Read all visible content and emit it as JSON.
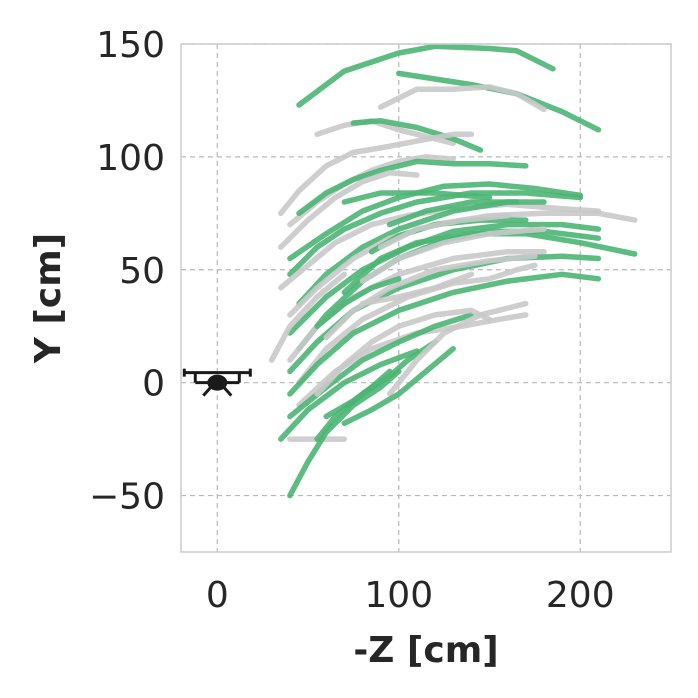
{
  "chart_data": {
    "type": "line",
    "xlabel": "-Z [cm]",
    "ylabel": "Y [cm]",
    "xlim": [
      -20,
      250
    ],
    "ylim": [
      -75,
      150
    ],
    "xticks": [
      0,
      100,
      200
    ],
    "yticks": [
      150,
      100,
      50,
      0,
      -50
    ],
    "xtick_labels": [
      "0",
      "100",
      "200"
    ],
    "ytick_labels": [
      "150",
      "100",
      "50",
      "0",
      "−50"
    ],
    "grid": true,
    "colors": {
      "green": "#4bb573",
      "gray": "#c9c9c9",
      "drone": "#1a1a1a"
    },
    "drone_marker": {
      "icon": "drone-icon",
      "x": 0,
      "y": 0
    },
    "series": [
      {
        "color": "green",
        "points": [
          [
            45,
            123
          ],
          [
            70,
            138
          ],
          [
            100,
            146
          ],
          [
            120,
            149
          ],
          [
            150,
            148
          ],
          [
            165,
            147
          ],
          [
            185,
            139
          ]
        ]
      },
      {
        "color": "green",
        "points": [
          [
            100,
            137
          ],
          [
            140,
            132
          ],
          [
            165,
            128
          ],
          [
            190,
            120
          ],
          [
            210,
            112
          ]
        ]
      },
      {
        "color": "gray",
        "points": [
          [
            90,
            122
          ],
          [
            110,
            130
          ],
          [
            130,
            130
          ],
          [
            150,
            131
          ],
          [
            165,
            128
          ],
          [
            180,
            121
          ]
        ]
      },
      {
        "color": "gray",
        "points": [
          [
            55,
            110
          ],
          [
            70,
            114
          ],
          [
            85,
            116
          ],
          [
            100,
            112
          ],
          [
            120,
            108
          ],
          [
            130,
            106
          ]
        ]
      },
      {
        "color": "green",
        "points": [
          [
            75,
            115
          ],
          [
            90,
            116
          ],
          [
            110,
            113
          ],
          [
            130,
            108
          ],
          [
            145,
            103
          ]
        ]
      },
      {
        "color": "gray",
        "points": [
          [
            35,
            75
          ],
          [
            45,
            85
          ],
          [
            60,
            96
          ],
          [
            75,
            102
          ],
          [
            90,
            104
          ],
          [
            110,
            107
          ],
          [
            130,
            110
          ],
          [
            140,
            110
          ]
        ]
      },
      {
        "color": "gray",
        "points": [
          [
            40,
            70
          ],
          [
            55,
            80
          ],
          [
            70,
            88
          ],
          [
            85,
            94
          ],
          [
            100,
            98
          ],
          [
            115,
            100
          ],
          [
            130,
            99
          ]
        ]
      },
      {
        "color": "green",
        "points": [
          [
            45,
            75
          ],
          [
            60,
            84
          ],
          [
            75,
            90
          ],
          [
            90,
            94
          ],
          [
            110,
            98
          ],
          [
            130,
            97
          ],
          [
            150,
            97
          ],
          [
            170,
            96
          ]
        ]
      },
      {
        "color": "gray",
        "points": [
          [
            35,
            60
          ],
          [
            50,
            72
          ],
          [
            65,
            82
          ],
          [
            80,
            89
          ],
          [
            95,
            93
          ],
          [
            110,
            92
          ]
        ]
      },
      {
        "color": "green",
        "points": [
          [
            40,
            55
          ],
          [
            60,
            66
          ],
          [
            80,
            76
          ],
          [
            100,
            82
          ],
          [
            125,
            87
          ],
          [
            150,
            88
          ],
          [
            175,
            86
          ],
          [
            200,
            83
          ]
        ]
      },
      {
        "color": "green",
        "points": [
          [
            40,
            48
          ],
          [
            55,
            60
          ],
          [
            70,
            68
          ],
          [
            90,
            75
          ],
          [
            110,
            80
          ],
          [
            140,
            84
          ],
          [
            170,
            84
          ],
          [
            200,
            82
          ]
        ]
      },
      {
        "color": "gray",
        "points": [
          [
            35,
            42
          ],
          [
            50,
            52
          ],
          [
            65,
            62
          ],
          [
            85,
            70
          ],
          [
            105,
            74
          ],
          [
            130,
            77
          ],
          [
            160,
            79
          ],
          [
            190,
            77
          ],
          [
            210,
            76
          ]
        ]
      },
      {
        "color": "green",
        "points": [
          [
            45,
            35
          ],
          [
            60,
            48
          ],
          [
            80,
            60
          ],
          [
            100,
            68
          ],
          [
            130,
            76
          ],
          [
            160,
            80
          ],
          [
            180,
            80
          ]
        ]
      },
      {
        "color": "gray",
        "points": [
          [
            40,
            30
          ],
          [
            55,
            42
          ],
          [
            75,
            55
          ],
          [
            95,
            64
          ],
          [
            120,
            70
          ],
          [
            150,
            74
          ],
          [
            180,
            75
          ],
          [
            210,
            75
          ],
          [
            230,
            72
          ]
        ]
      },
      {
        "color": "green",
        "points": [
          [
            40,
            22
          ],
          [
            60,
            38
          ],
          [
            80,
            50
          ],
          [
            105,
            60
          ],
          [
            130,
            67
          ],
          [
            160,
            70
          ],
          [
            190,
            70
          ],
          [
            210,
            68
          ]
        ]
      },
      {
        "color": "green",
        "points": [
          [
            45,
            15
          ],
          [
            60,
            30
          ],
          [
            80,
            45
          ],
          [
            100,
            55
          ],
          [
            125,
            63
          ],
          [
            150,
            67
          ],
          [
            180,
            67
          ],
          [
            210,
            64
          ]
        ]
      },
      {
        "color": "gray",
        "points": [
          [
            40,
            10
          ],
          [
            55,
            25
          ],
          [
            75,
            38
          ],
          [
            100,
            48
          ],
          [
            130,
            55
          ],
          [
            160,
            58
          ],
          [
            180,
            58
          ]
        ]
      },
      {
        "color": "green",
        "points": [
          [
            40,
            5
          ],
          [
            55,
            18
          ],
          [
            75,
            32
          ],
          [
            100,
            42
          ],
          [
            130,
            50
          ],
          [
            160,
            55
          ],
          [
            190,
            56
          ],
          [
            210,
            55
          ]
        ]
      },
      {
        "color": "gray",
        "points": [
          [
            45,
            0
          ],
          [
            60,
            15
          ],
          [
            80,
            28
          ],
          [
            105,
            38
          ],
          [
            130,
            44
          ],
          [
            150,
            46
          ],
          [
            165,
            50
          ],
          [
            175,
            52
          ]
        ]
      },
      {
        "color": "green",
        "points": [
          [
            40,
            -5
          ],
          [
            55,
            8
          ],
          [
            75,
            22
          ],
          [
            100,
            32
          ],
          [
            130,
            40
          ],
          [
            160,
            45
          ],
          [
            190,
            48
          ],
          [
            210,
            46
          ]
        ]
      },
      {
        "color": "gray",
        "points": [
          [
            45,
            -10
          ],
          [
            65,
            5
          ],
          [
            85,
            15
          ],
          [
            110,
            22
          ],
          [
            135,
            25
          ],
          [
            155,
            28
          ],
          [
            170,
            30
          ]
        ]
      },
      {
        "color": "green",
        "points": [
          [
            40,
            -15
          ],
          [
            60,
            -2
          ],
          [
            80,
            10
          ],
          [
            100,
            18
          ],
          [
            120,
            25
          ],
          [
            140,
            30
          ]
        ]
      },
      {
        "color": "gray",
        "points": [
          [
            55,
            -5
          ],
          [
            70,
            8
          ],
          [
            85,
            18
          ],
          [
            100,
            25
          ],
          [
            120,
            30
          ],
          [
            140,
            32
          ],
          [
            150,
            28
          ]
        ]
      },
      {
        "color": "green",
        "points": [
          [
            35,
            -25
          ],
          [
            50,
            -12
          ],
          [
            70,
            0
          ],
          [
            90,
            8
          ],
          [
            110,
            14
          ]
        ]
      },
      {
        "color": "gray",
        "points": [
          [
            60,
            20
          ],
          [
            75,
            32
          ],
          [
            95,
            42
          ],
          [
            120,
            50
          ],
          [
            150,
            54
          ],
          [
            175,
            56
          ]
        ]
      },
      {
        "color": "green",
        "points": [
          [
            70,
            40
          ],
          [
            90,
            55
          ],
          [
            110,
            62
          ],
          [
            140,
            66
          ],
          [
            170,
            66
          ],
          [
            200,
            62
          ],
          [
            230,
            57
          ]
        ]
      },
      {
        "color": "gray",
        "points": [
          [
            80,
            45
          ],
          [
            100,
            55
          ],
          [
            125,
            62
          ],
          [
            150,
            66
          ],
          [
            180,
            68
          ]
        ]
      },
      {
        "color": "green",
        "points": [
          [
            85,
            58
          ],
          [
            100,
            65
          ],
          [
            120,
            70
          ],
          [
            145,
            72
          ],
          [
            170,
            72
          ]
        ]
      },
      {
        "color": "gray",
        "points": [
          [
            90,
            60
          ],
          [
            110,
            68
          ],
          [
            135,
            72
          ],
          [
            160,
            74
          ]
        ]
      },
      {
        "color": "green",
        "points": [
          [
            95,
            70
          ],
          [
            115,
            76
          ],
          [
            140,
            80
          ],
          [
            165,
            80
          ]
        ]
      },
      {
        "color": "green",
        "points": [
          [
            70,
            80
          ],
          [
            90,
            84
          ],
          [
            120,
            84
          ],
          [
            150,
            82
          ]
        ]
      },
      {
        "color": "gray",
        "points": [
          [
            40,
            -25
          ],
          [
            55,
            -25
          ],
          [
            70,
            -25
          ]
        ]
      },
      {
        "color": "green",
        "points": [
          [
            40,
            -50
          ],
          [
            50,
            -35
          ],
          [
            60,
            -22
          ],
          [
            75,
            -10
          ],
          [
            90,
            -2
          ],
          [
            100,
            5
          ]
        ]
      },
      {
        "color": "green",
        "points": [
          [
            55,
            -25
          ],
          [
            65,
            -15
          ],
          [
            80,
            -5
          ],
          [
            95,
            3
          ],
          [
            105,
            10
          ],
          [
            120,
            18
          ]
        ]
      },
      {
        "color": "green",
        "points": [
          [
            60,
            -15
          ],
          [
            75,
            -8
          ],
          [
            85,
            -2
          ],
          [
            95,
            5
          ]
        ]
      },
      {
        "color": "gray",
        "points": [
          [
            95,
            -5
          ],
          [
            110,
            10
          ],
          [
            125,
            22
          ],
          [
            145,
            30
          ],
          [
            170,
            35
          ]
        ]
      },
      {
        "color": "green",
        "points": [
          [
            70,
            -18
          ],
          [
            85,
            -12
          ],
          [
            100,
            -5
          ],
          [
            115,
            5
          ],
          [
            130,
            15
          ]
        ]
      },
      {
        "color": "gray",
        "points": [
          [
            30,
            10
          ],
          [
            40,
            25
          ],
          [
            55,
            38
          ],
          [
            70,
            48
          ]
        ]
      },
      {
        "color": "green",
        "points": [
          [
            55,
            25
          ],
          [
            70,
            35
          ],
          [
            85,
            42
          ],
          [
            100,
            46
          ]
        ]
      },
      {
        "color": "gray",
        "points": [
          [
            80,
            35
          ],
          [
            100,
            38
          ],
          [
            120,
            42
          ],
          [
            140,
            48
          ]
        ]
      }
    ]
  }
}
